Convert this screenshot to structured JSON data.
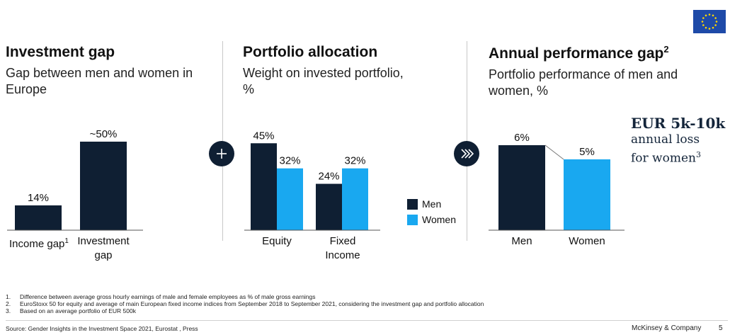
{
  "colors": {
    "men": "#0f1f33",
    "women": "#19a8f0",
    "axis": "#555555",
    "flag": "#1e4aa8",
    "star": "#ffd700"
  },
  "flag": {
    "icon": "eu-flag-icon"
  },
  "panels": [
    {
      "title": "Investment gap",
      "title_sup": "",
      "subtitle": "Gap between men and women in Europe"
    },
    {
      "title": "Portfolio allocation",
      "title_sup": "",
      "subtitle": "Weight on invested portfolio, %"
    },
    {
      "title": "Annual performance gap",
      "title_sup": "2",
      "subtitle": "Portfolio performance of men and women, %"
    }
  ],
  "chart_data": [
    {
      "type": "bar",
      "title": "Investment gap",
      "subtitle": "Gap between men and women in Europe",
      "categories": [
        "Income gap",
        "Investment gap"
      ],
      "category_sups": [
        "1",
        ""
      ],
      "values": [
        14,
        50
      ],
      "labels": [
        "14%",
        "~50%"
      ],
      "ylim": [
        0,
        60
      ]
    },
    {
      "type": "bar",
      "title": "Portfolio allocation",
      "subtitle": "Weight on invested portfolio, %",
      "categories": [
        "Equity",
        "Fixed Income"
      ],
      "series": [
        {
          "name": "Men",
          "values": [
            45,
            24
          ]
        },
        {
          "name": "Women",
          "values": [
            32,
            32
          ]
        }
      ],
      "ylim": [
        0,
        55
      ]
    },
    {
      "type": "bar",
      "title": "Annual performance gap",
      "subtitle": "Portfolio performance of men and women, %",
      "categories": [
        "Men",
        "Women"
      ],
      "values": [
        6,
        5
      ],
      "labels": [
        "6%",
        "5%"
      ],
      "ylim": [
        0,
        7.5
      ]
    }
  ],
  "legend": [
    {
      "label": "Men"
    },
    {
      "label": "Women"
    }
  ],
  "connectors": {
    "plus_icon": "plus-icon",
    "arrow_icon": "double-chevron-right-icon"
  },
  "callout": {
    "headline": "EUR 5k-10k",
    "line1": "annual loss",
    "line2": "for women",
    "sup": "3"
  },
  "footnotes": [
    {
      "num": "1.",
      "text": "Difference between average gross hourly earnings of male and female employees as % of male gross earnings"
    },
    {
      "num": "2.",
      "text": "EuroStoxx 50 for equity and average of main European fixed income indices from September 2018 to September 2021, considering the investment gap and portfolio allocation"
    },
    {
      "num": "3.",
      "text": "Based on an average portfolio of EUR 500k"
    }
  ],
  "source": "Source: Gender Insights in the Investment Space 2021, Eurostat , Press",
  "brand": "McKinsey & Company",
  "page_number": "5"
}
